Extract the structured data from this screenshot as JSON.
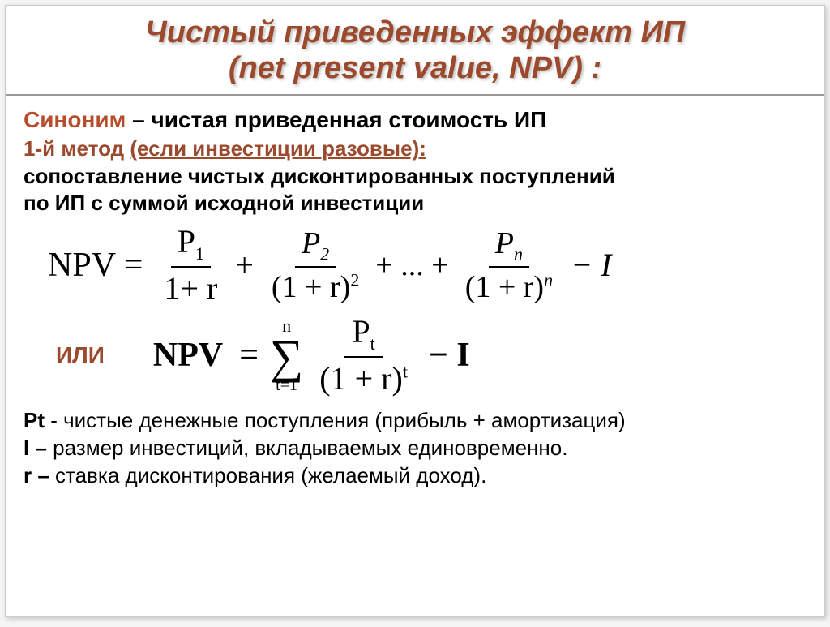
{
  "title": {
    "line1": "Чистый приведенных эффект ИП",
    "line2": "(net present value, NPV) :",
    "color": "#9c4a2e",
    "fontsize": 38
  },
  "synonym": {
    "label": "Синоним",
    "dash": " – ",
    "rest": "чистая приведенная стоимость ИП",
    "label_color": "#b84c2c"
  },
  "method": {
    "prefix": "1-й метод ",
    "underlined": "(если инвестиции разовые):",
    "color": "#9c4a2e"
  },
  "desc": {
    "line1": "сопоставление чистых дисконтированных поступлений",
    "line2": "по ИП с суммой исходной инвестиции"
  },
  "formula1": {
    "lhs": "NPV",
    "eq": "=",
    "term1_num": "P",
    "term1_num_sub": "1",
    "term1_den": "1+ r",
    "plus": "+",
    "term2_num": "P",
    "term2_num_sub": "2",
    "term2_den_base": "(1 + r)",
    "term2_den_exp": "2",
    "dots": "+ ... +",
    "term3_num": "P",
    "term3_num_sub": "n",
    "term3_den_base": "(1 + r)",
    "term3_den_exp": "n",
    "tail": "− I"
  },
  "or_label": "ИЛИ",
  "formula2": {
    "lhs": "NPV",
    "eq": "=",
    "sigma_top": "n",
    "sigma_bot": "t=1",
    "num": "P",
    "num_sub": "t",
    "den_base": "(1 + r)",
    "den_exp": "t",
    "tail": "− I"
  },
  "legend": {
    "pt_var": "Pt",
    "pt_text": "  - чистые денежные поступления (прибыль + амортизация)",
    "i_var": "I –",
    "i_text": "  размер инвестиций, вкладываемых единовременно.",
    "r_var": "r –",
    "r_text": " ставка дисконтирования (желаемый доход)."
  },
  "colors": {
    "background": "#ffffff",
    "heading": "#9c4a2e",
    "text": "#000000",
    "border": "#999999"
  }
}
